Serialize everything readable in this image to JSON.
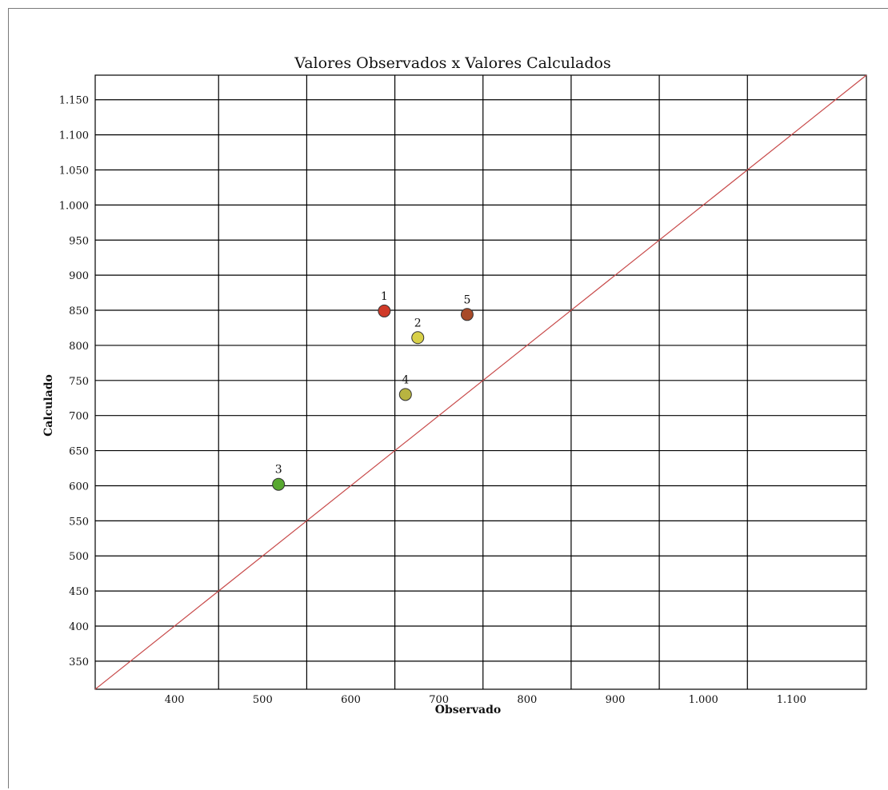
{
  "chart_data": {
    "type": "scatter",
    "title": "Valores Observados x Valores Calculados",
    "xlabel": "Observado",
    "ylabel": "Calculado",
    "xlim": [
      310,
      1185
    ],
    "ylim": [
      310,
      1185
    ],
    "xticks": [
      400,
      500,
      600,
      700,
      800,
      900,
      1000,
      1100
    ],
    "xtick_labels": [
      "400",
      "500",
      "600",
      "700",
      "800",
      "900",
      "1.000",
      "1.100"
    ],
    "yticks": [
      350,
      400,
      450,
      500,
      550,
      600,
      650,
      700,
      750,
      800,
      850,
      900,
      950,
      1000,
      1050,
      1100,
      1150
    ],
    "ytick_labels": [
      "350",
      "400",
      "450",
      "500",
      "550",
      "600",
      "650",
      "700",
      "750",
      "800",
      "850",
      "900",
      "950",
      "1.000",
      "1.050",
      "1.100",
      "1.150"
    ],
    "x_gridlines": [
      450,
      550,
      650,
      750,
      850,
      950,
      1050
    ],
    "y_gridlines": [
      350,
      400,
      450,
      500,
      550,
      600,
      650,
      700,
      750,
      800,
      850,
      900,
      950,
      1000,
      1050,
      1100,
      1150
    ],
    "grid": true,
    "reference_line": {
      "type": "identity",
      "color": "#c84a4a"
    },
    "points": [
      {
        "label": "1",
        "x": 638,
        "y": 849,
        "color": "#d03a28"
      },
      {
        "label": "2",
        "x": 676,
        "y": 811,
        "color": "#d8d048"
      },
      {
        "label": "3",
        "x": 518,
        "y": 602,
        "color": "#58a830"
      },
      {
        "label": "4",
        "x": 662,
        "y": 730,
        "color": "#b8b440"
      },
      {
        "label": "5",
        "x": 732,
        "y": 844,
        "color": "#a84a28"
      }
    ]
  }
}
